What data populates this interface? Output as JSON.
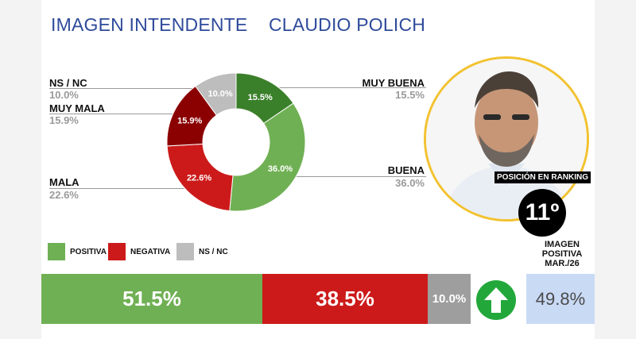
{
  "header": {
    "title_left": "IMAGEN INTENDENTE",
    "title_right": "CLAUDIO POLICH"
  },
  "chart_data": [
    {
      "type": "pie",
      "categories": [
        "MUY BUENA",
        "BUENA",
        "MALA",
        "MUY MALA",
        "NS / NC"
      ],
      "values": [
        15.5,
        36.0,
        22.6,
        15.9,
        10.0
      ],
      "slice_labels": [
        "15.5%",
        "36.0%",
        "22.6%",
        "15.9%",
        "10.0%"
      ],
      "outer_labels": [
        "15.5%",
        "36.0%",
        "22.6%",
        "15.9%",
        "10.0%"
      ],
      "colors": [
        "#3a7f2a",
        "#70b054",
        "#cc1a1a",
        "#8b0000",
        "#bdbdbd"
      ]
    },
    {
      "type": "bar",
      "categories": [
        "POSITIVA",
        "NEGATIVA",
        "NS / NC"
      ],
      "values": [
        51.5,
        38.5,
        10.0
      ],
      "value_labels": [
        "51.5%",
        "38.5%",
        "10.0%"
      ],
      "colors": [
        "#70b054",
        "#cc1a1a",
        "#9e9e9e"
      ]
    }
  ],
  "ranking": {
    "label": "POSICIÓN EN RANKING",
    "value": "11º"
  },
  "image_positive": {
    "label": "IMAGEN POSITIVA MAR./26",
    "value": "49.8%",
    "trend_icon": "arrow-up-icon",
    "trend_color": "#22a83a"
  }
}
